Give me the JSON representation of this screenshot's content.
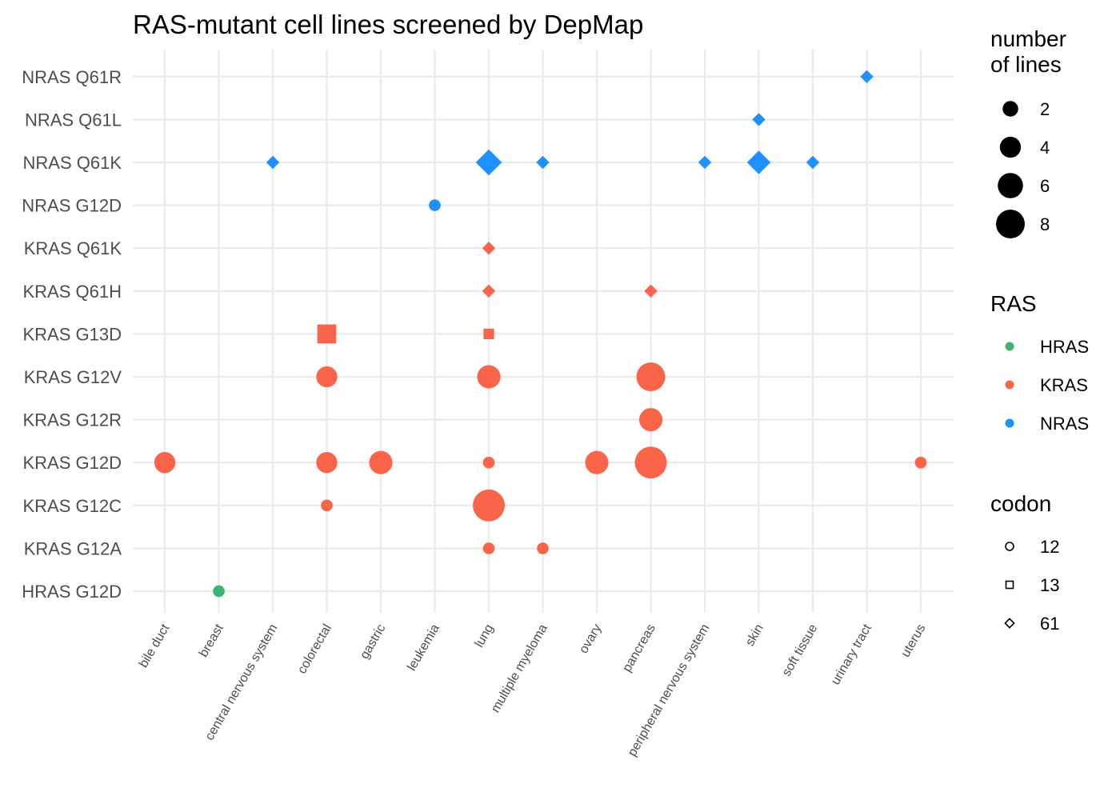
{
  "chart_data": {
    "type": "scatter",
    "title": "RAS-mutant cell lines screened by DepMap",
    "xlabel": "",
    "ylabel": "",
    "x_categories": [
      "bile duct",
      "breast",
      "central nervous system",
      "colorectal",
      "gastric",
      "leukemia",
      "lung",
      "multiple myeloma",
      "ovary",
      "pancreas",
      "peripheral nervous system",
      "skin",
      "soft tissue",
      "urinary tract",
      "uterus"
    ],
    "y_categories": [
      "HRAS G12D",
      "KRAS G12A",
      "KRAS G12C",
      "KRAS G12D",
      "KRAS G12R",
      "KRAS G12V",
      "KRAS G13D",
      "KRAS Q61H",
      "KRAS Q61K",
      "NRAS G12D",
      "NRAS Q61K",
      "NRAS Q61L",
      "NRAS Q61R"
    ],
    "colors": {
      "HRAS": "#3cb371",
      "KRAS": "#fa6449",
      "NRAS": "#1e90ff"
    },
    "shapes": {
      "12": "circle",
      "13": "square",
      "61": "diamond"
    },
    "points": [
      {
        "x": "breast",
        "y": "HRAS G12D",
        "ras": "HRAS",
        "codon": "12",
        "n": 1
      },
      {
        "x": "lung",
        "y": "KRAS G12A",
        "ras": "KRAS",
        "codon": "12",
        "n": 1
      },
      {
        "x": "multiple myeloma",
        "y": "KRAS G12A",
        "ras": "KRAS",
        "codon": "12",
        "n": 1
      },
      {
        "x": "colorectal",
        "y": "KRAS G12C",
        "ras": "KRAS",
        "codon": "12",
        "n": 1
      },
      {
        "x": "lung",
        "y": "KRAS G12C",
        "ras": "KRAS",
        "codon": "12",
        "n": 10
      },
      {
        "x": "bile duct",
        "y": "KRAS G12D",
        "ras": "KRAS",
        "codon": "12",
        "n": 4
      },
      {
        "x": "colorectal",
        "y": "KRAS G12D",
        "ras": "KRAS",
        "codon": "12",
        "n": 4
      },
      {
        "x": "gastric",
        "y": "KRAS G12D",
        "ras": "KRAS",
        "codon": "12",
        "n": 5
      },
      {
        "x": "lung",
        "y": "KRAS G12D",
        "ras": "KRAS",
        "codon": "12",
        "n": 1
      },
      {
        "x": "ovary",
        "y": "KRAS G12D",
        "ras": "KRAS",
        "codon": "12",
        "n": 5
      },
      {
        "x": "pancreas",
        "y": "KRAS G12D",
        "ras": "KRAS",
        "codon": "12",
        "n": 10
      },
      {
        "x": "uterus",
        "y": "KRAS G12D",
        "ras": "KRAS",
        "codon": "12",
        "n": 1
      },
      {
        "x": "pancreas",
        "y": "KRAS G12R",
        "ras": "KRAS",
        "codon": "12",
        "n": 5
      },
      {
        "x": "colorectal",
        "y": "KRAS G12V",
        "ras": "KRAS",
        "codon": "12",
        "n": 4
      },
      {
        "x": "lung",
        "y": "KRAS G12V",
        "ras": "KRAS",
        "codon": "12",
        "n": 5
      },
      {
        "x": "pancreas",
        "y": "KRAS G12V",
        "ras": "KRAS",
        "codon": "12",
        "n": 8
      },
      {
        "x": "colorectal",
        "y": "KRAS G13D",
        "ras": "KRAS",
        "codon": "13",
        "n": 4
      },
      {
        "x": "lung",
        "y": "KRAS G13D",
        "ras": "KRAS",
        "codon": "13",
        "n": 1
      },
      {
        "x": "lung",
        "y": "KRAS Q61H",
        "ras": "KRAS",
        "codon": "61",
        "n": 1
      },
      {
        "x": "pancreas",
        "y": "KRAS Q61H",
        "ras": "KRAS",
        "codon": "61",
        "n": 1
      },
      {
        "x": "lung",
        "y": "KRAS Q61K",
        "ras": "KRAS",
        "codon": "61",
        "n": 1
      },
      {
        "x": "leukemia",
        "y": "NRAS G12D",
        "ras": "NRAS",
        "codon": "12",
        "n": 1
      },
      {
        "x": "central nervous system",
        "y": "NRAS Q61K",
        "ras": "NRAS",
        "codon": "61",
        "n": 1
      },
      {
        "x": "lung",
        "y": "NRAS Q61K",
        "ras": "NRAS",
        "codon": "61",
        "n": 5
      },
      {
        "x": "multiple myeloma",
        "y": "NRAS Q61K",
        "ras": "NRAS",
        "codon": "61",
        "n": 1
      },
      {
        "x": "peripheral nervous system",
        "y": "NRAS Q61K",
        "ras": "NRAS",
        "codon": "61",
        "n": 1
      },
      {
        "x": "skin",
        "y": "NRAS Q61K",
        "ras": "NRAS",
        "codon": "61",
        "n": 4
      },
      {
        "x": "soft tissue",
        "y": "NRAS Q61K",
        "ras": "NRAS",
        "codon": "61",
        "n": 1
      },
      {
        "x": "skin",
        "y": "NRAS Q61L",
        "ras": "NRAS",
        "codon": "61",
        "n": 1
      },
      {
        "x": "urinary tract",
        "y": "NRAS Q61R",
        "ras": "NRAS",
        "codon": "61",
        "n": 1
      }
    ],
    "legends": {
      "size": {
        "title_lines": [
          "number",
          "of lines"
        ],
        "values": [
          2,
          4,
          6,
          8
        ]
      },
      "ras": {
        "title": "RAS",
        "values": [
          "HRAS",
          "KRAS",
          "NRAS"
        ]
      },
      "codon": {
        "title": "codon",
        "values": [
          "12",
          "13",
          "61"
        ]
      }
    },
    "grid": true,
    "legend_position": "right"
  }
}
